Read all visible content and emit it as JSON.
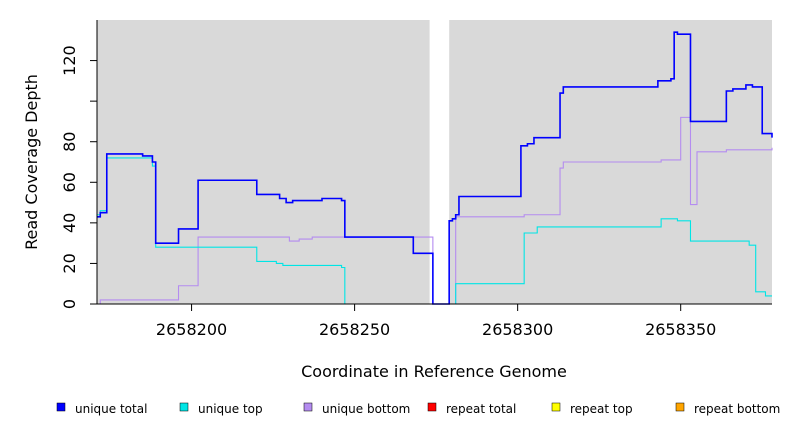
{
  "chart_data": {
    "type": "line",
    "title": "",
    "xlabel": "Coordinate in Reference Genome",
    "ylabel": "Read Coverage Depth",
    "xlim": [
      2658171,
      2658378
    ],
    "ylim": [
      0,
      140
    ],
    "x_ticks": [
      2658200,
      2658250,
      2658300,
      2658350
    ],
    "x_tick_labels": [
      "2658200",
      "2658250",
      "2658300",
      "2658350"
    ],
    "y_ticks": [
      0,
      20,
      40,
      60,
      80,
      100,
      120
    ],
    "y_tick_labels": [
      "0",
      "20",
      "40",
      "60",
      "80",
      "",
      "120"
    ],
    "grid": false,
    "legend_position": "bottom",
    "gap_region": [
      2658273,
      2658279
    ],
    "series": [
      {
        "name": "unique total",
        "color": "#0000ff",
        "x": [
          2658171,
          2658172,
          2658174,
          2658185,
          2658188,
          2658189,
          2658196,
          2658202,
          2658220,
          2658227,
          2658229,
          2658231,
          2658233,
          2658240,
          2658246,
          2658247,
          2658268,
          2658274,
          2658279,
          2658280,
          2658281,
          2658282,
          2658301,
          2658303,
          2658305,
          2658313,
          2658314,
          2658342,
          2658343,
          2658347,
          2658348,
          2658349,
          2658353,
          2658364,
          2658366,
          2658370,
          2658372,
          2658375,
          2658378
        ],
        "y": [
          43,
          45,
          74,
          73,
          70,
          30,
          37,
          61,
          54,
          52,
          50,
          51,
          51,
          52,
          51,
          33,
          25,
          0,
          41,
          42,
          44,
          53,
          78,
          79,
          82,
          104,
          107,
          107,
          110,
          111,
          134,
          133,
          90,
          105,
          106,
          108,
          107,
          84,
          82
        ]
      },
      {
        "name": "unique top",
        "color": "#00e5e5",
        "x": [
          2658171,
          2658172,
          2658174,
          2658185,
          2658188,
          2658189,
          2658201,
          2658220,
          2658226,
          2658228,
          2658246,
          2658247,
          2658274,
          2658281,
          2658302,
          2658306,
          2658342,
          2658344,
          2658349,
          2658353,
          2658371,
          2658373,
          2658376,
          2658378
        ],
        "y": [
          44,
          46,
          72,
          72,
          68,
          28,
          28,
          21,
          20,
          19,
          18,
          0,
          0,
          10,
          35,
          38,
          38,
          42,
          41,
          31,
          29,
          6,
          4,
          4
        ],
        "step": "hv"
      },
      {
        "name": "unique bottom",
        "color": "#b48cf0",
        "x": [
          2658171,
          2658172,
          2658196,
          2658202,
          2658220,
          2658230,
          2658233,
          2658237,
          2658247,
          2658274,
          2658281,
          2658302,
          2658313,
          2658314,
          2658342,
          2658344,
          2658350,
          2658353,
          2658355,
          2658364,
          2658378
        ],
        "y": [
          0,
          2,
          9,
          33,
          33,
          31,
          32,
          33,
          33,
          0,
          43,
          44,
          67,
          70,
          70,
          71,
          92,
          49,
          75,
          76,
          77
        ],
        "step": "hv"
      },
      {
        "name": "repeat total",
        "color": "#ff0000",
        "x": [
          2658171,
          2658378
        ],
        "y": [
          0,
          0
        ]
      },
      {
        "name": "repeat top",
        "color": "#ffff00",
        "x": [
          2658171,
          2658378
        ],
        "y": [
          0,
          0
        ]
      },
      {
        "name": "repeat bottom",
        "color": "#ffa500",
        "x": [
          2658171,
          2658378
        ],
        "y": [
          0,
          0
        ]
      }
    ]
  }
}
